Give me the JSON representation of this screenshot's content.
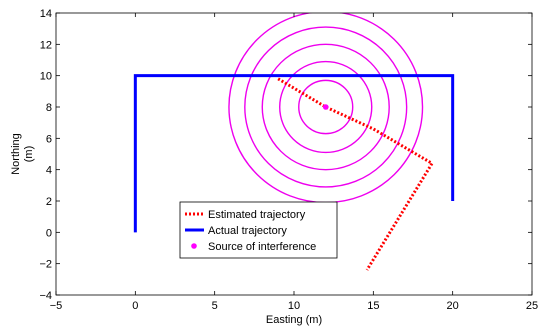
{
  "chart_data": {
    "type": "line",
    "xlabel": "Easting (m)",
    "ylabel_lines": [
      "Northing",
      "(m)"
    ],
    "xlim": [
      -5,
      25
    ],
    "ylim": [
      -4,
      14
    ],
    "xticks": [
      -5,
      0,
      5,
      10,
      15,
      20,
      25
    ],
    "yticks": [
      -4,
      -2,
      0,
      2,
      4,
      6,
      8,
      10,
      12,
      14
    ],
    "ytick_labels": [
      "−4",
      "−2",
      "0",
      "2",
      "4",
      "6",
      "8",
      "10",
      "12",
      "14"
    ],
    "grid": false,
    "legend_position": "lower-center",
    "series": [
      {
        "name": "Estimated trajectory",
        "style": "dotted",
        "color": "#ff0000",
        "x": [
          9.0,
          12.0,
          15.0,
          18.7,
          14.6
        ],
        "y": [
          9.8,
          8.0,
          6.6,
          4.4,
          -2.4
        ]
      },
      {
        "name": "Actual trajectory",
        "style": "solid",
        "color": "#0000ff",
        "x": [
          0,
          0,
          20,
          20
        ],
        "y": [
          0,
          10,
          10,
          2
        ]
      },
      {
        "name": "Source of interference",
        "style": "marker",
        "color": "#ff00ff",
        "x": [
          12
        ],
        "y": [
          8
        ]
      }
    ],
    "annotations": {
      "circles": {
        "center": [
          12,
          8
        ],
        "radii": [
          1.7,
          2.9,
          4.0,
          5.1,
          6.1
        ],
        "color": "#ee00ee"
      }
    }
  }
}
